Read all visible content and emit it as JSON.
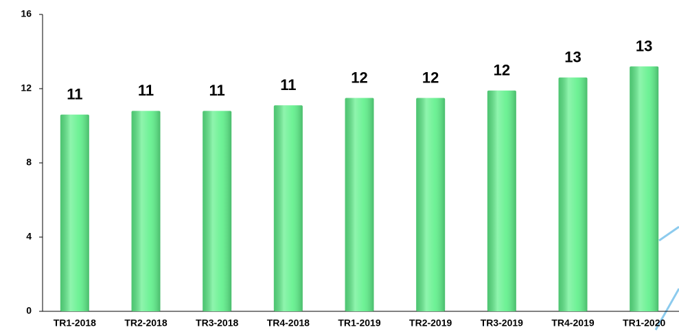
{
  "chart_data": {
    "type": "bar",
    "categories": [
      "TR1-2018",
      "TR2-2018",
      "TR3-2018",
      "TR4-2018",
      "TR1-2019",
      "TR2-2019",
      "TR3-2019",
      "TR4-2019",
      "TR1-2020"
    ],
    "values": [
      10.6,
      10.8,
      10.8,
      11.1,
      11.5,
      11.5,
      11.9,
      12.6,
      13.2
    ],
    "value_labels": [
      "11",
      "11",
      "11",
      "11",
      "12",
      "12",
      "12",
      "13",
      "13"
    ],
    "color": "#5ef08a",
    "ylim": [
      0,
      16
    ],
    "yticks": [
      0,
      4,
      8,
      12,
      16
    ],
    "grid": false
  }
}
